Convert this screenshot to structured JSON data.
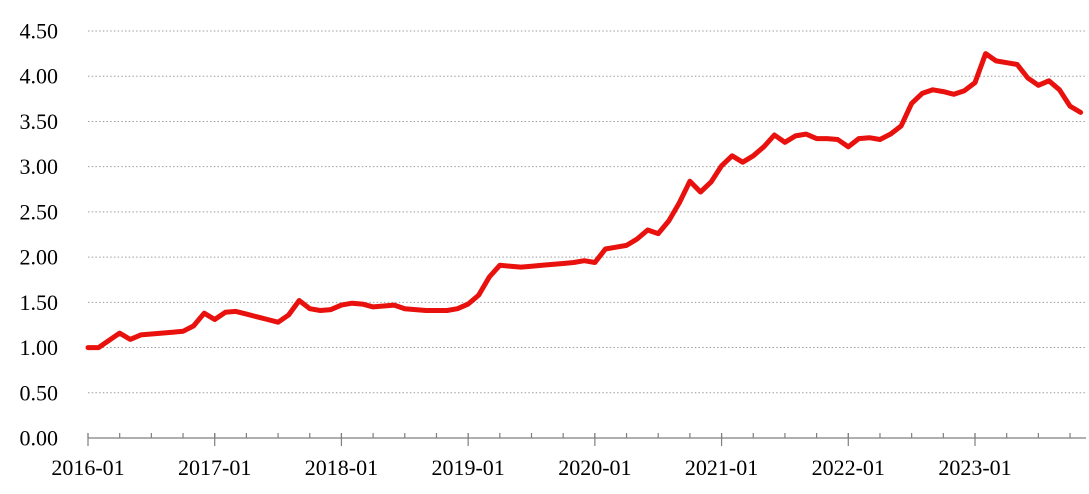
{
  "chart_data": {
    "type": "line",
    "title": "",
    "xlabel": "",
    "ylabel": "",
    "ylim": [
      0.0,
      4.5
    ],
    "grid": "horizontal-dotted",
    "legend": "none",
    "grid_color": "#9e9e9e",
    "axis_color": "#7f7f7f",
    "y_tick_labels": [
      "0.00",
      "0.50",
      "1.00",
      "1.50",
      "2.00",
      "2.50",
      "3.00",
      "3.50",
      "4.00",
      "4.50"
    ],
    "x_tick_labels": [
      "2016-01",
      "2017-01",
      "2018-01",
      "2019-01",
      "2020-01",
      "2021-01",
      "2022-01",
      "2023-01"
    ],
    "minor_tick_interval_months": 3,
    "series": [
      {
        "name": "index-line",
        "color": "#e8110d",
        "start": "2016-01",
        "freq": "monthly",
        "x": [
          "2016-01",
          "2016-02",
          "2016-03",
          "2016-04",
          "2016-05",
          "2016-06",
          "2016-07",
          "2016-08",
          "2016-09",
          "2016-10",
          "2016-11",
          "2016-12",
          "2017-01",
          "2017-02",
          "2017-03",
          "2017-04",
          "2017-05",
          "2017-06",
          "2017-07",
          "2017-08",
          "2017-09",
          "2017-10",
          "2017-11",
          "2017-12",
          "2018-01",
          "2018-02",
          "2018-03",
          "2018-04",
          "2018-05",
          "2018-06",
          "2018-07",
          "2018-08",
          "2018-09",
          "2018-10",
          "2018-11",
          "2018-12",
          "2019-01",
          "2019-02",
          "2019-03",
          "2019-04",
          "2019-05",
          "2019-06",
          "2019-07",
          "2019-08",
          "2019-09",
          "2019-10",
          "2019-11",
          "2019-12",
          "2020-01",
          "2020-02",
          "2020-03",
          "2020-04",
          "2020-05",
          "2020-06",
          "2020-07",
          "2020-08",
          "2020-09",
          "2020-10",
          "2020-11",
          "2020-12",
          "2021-01",
          "2021-02",
          "2021-03",
          "2021-04",
          "2021-05",
          "2021-06",
          "2021-07",
          "2021-08",
          "2021-09",
          "2021-10",
          "2021-11",
          "2021-12",
          "2022-01",
          "2022-02",
          "2022-03",
          "2022-04",
          "2022-05",
          "2022-06",
          "2022-07",
          "2022-08",
          "2022-09",
          "2022-10",
          "2022-11",
          "2022-12",
          "2023-01",
          "2023-02",
          "2023-03",
          "2023-04",
          "2023-05",
          "2023-06",
          "2023-07",
          "2023-08",
          "2023-09",
          "2023-10",
          "2023-11"
        ],
        "values": [
          1.0,
          1.0,
          1.08,
          1.16,
          1.09,
          1.14,
          1.15,
          1.16,
          1.17,
          1.18,
          1.24,
          1.38,
          1.31,
          1.39,
          1.4,
          1.37,
          1.34,
          1.31,
          1.28,
          1.36,
          1.52,
          1.43,
          1.41,
          1.42,
          1.47,
          1.49,
          1.48,
          1.45,
          1.46,
          1.47,
          1.43,
          1.42,
          1.41,
          1.41,
          1.41,
          1.43,
          1.48,
          1.58,
          1.78,
          1.91,
          1.9,
          1.89,
          1.9,
          1.91,
          1.92,
          1.93,
          1.94,
          1.96,
          1.94,
          2.09,
          2.11,
          2.13,
          2.2,
          2.3,
          2.26,
          2.4,
          2.6,
          2.84,
          2.72,
          2.83,
          3.01,
          3.12,
          3.05,
          3.12,
          3.22,
          3.35,
          3.27,
          3.34,
          3.36,
          3.31,
          3.31,
          3.3,
          3.22,
          3.31,
          3.32,
          3.3,
          3.36,
          3.45,
          3.7,
          3.81,
          3.85,
          3.83,
          3.8,
          3.84,
          3.93,
          4.25,
          4.17,
          4.15,
          4.13,
          3.98,
          3.9,
          3.95,
          3.85,
          3.67,
          3.6
        ]
      }
    ]
  }
}
